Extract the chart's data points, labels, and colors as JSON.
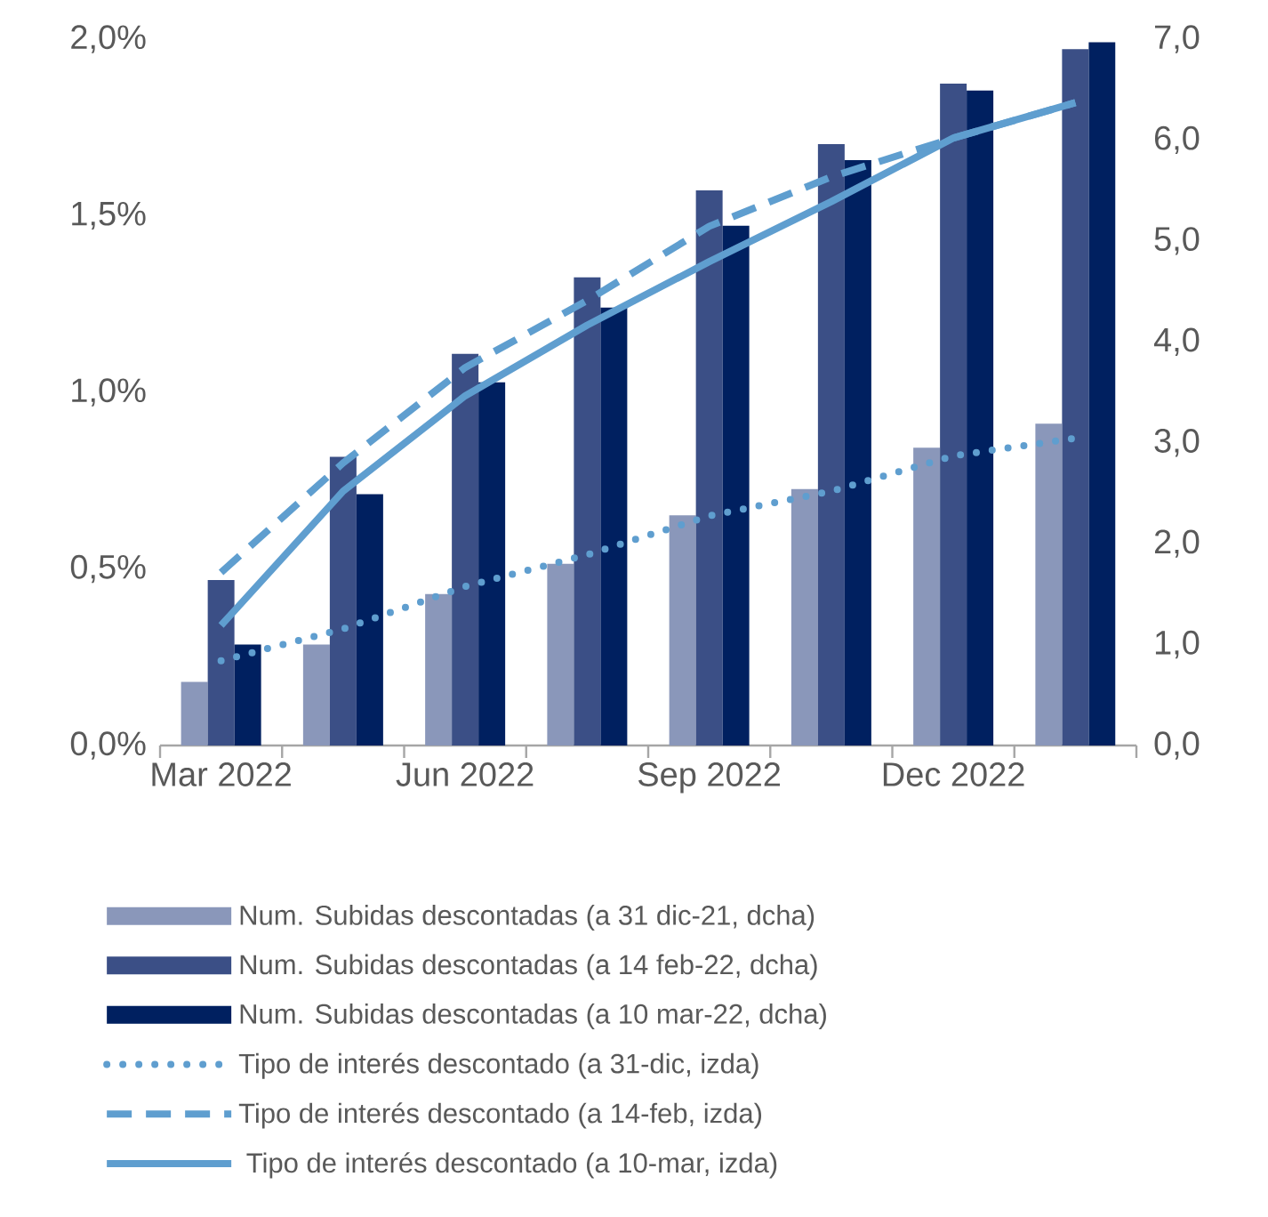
{
  "chart_data": {
    "type": "bar",
    "categories": [
      "Mar 2022",
      null,
      "Jun 2022",
      null,
      "Sep 2022",
      null,
      "Dec 2022",
      null
    ],
    "series": [
      {
        "name": "Num. Subidas descontadas (a 31 dic-21, dcha)",
        "axis": "y2",
        "color": "#8a97ba",
        "values": [
          0.63,
          1.0,
          1.5,
          1.8,
          2.28,
          2.54,
          2.95,
          3.19
        ]
      },
      {
        "name": "Num. Subidas descontadas (a 14 feb-22, dcha)",
        "axis": "y2",
        "color": "#3b4f86",
        "values": [
          1.64,
          2.86,
          3.88,
          4.64,
          5.5,
          5.96,
          6.56,
          6.9
        ]
      },
      {
        "name": "Num. Subidas descontadas (a 10 mar-22, dcha)",
        "axis": "y2",
        "color": "#002060",
        "values": [
          1.0,
          2.49,
          3.6,
          4.34,
          5.15,
          5.8,
          6.49,
          6.97
        ]
      },
      {
        "name": "Tipo de interés descontado (a 31-dic, izda)",
        "type": "line",
        "line_style": "dotted",
        "color": "#5f9ecf",
        "values": [
          0.24,
          0.33,
          0.45,
          0.54,
          0.65,
          0.72,
          0.82,
          0.87
        ]
      },
      {
        "name": "Tipo de interés descontado (a 14-feb, izda)",
        "type": "line",
        "line_style": "dashed",
        "color": "#5f9ecf",
        "values": [
          0.49,
          0.8,
          1.07,
          1.26,
          1.47,
          1.61,
          1.72,
          1.82
        ]
      },
      {
        "name": " Tipo de interés descontado (a 10-mar, izda)",
        "type": "line",
        "line_style": "solid",
        "color": "#5f9ecf",
        "values": [
          0.34,
          0.72,
          0.99,
          1.19,
          1.37,
          1.54,
          1.72,
          1.82
        ]
      }
    ],
    "ylim": [
      0,
      2
    ],
    "yticks": [
      {
        "value": 0,
        "label": "0,0%"
      },
      {
        "value": 0.5,
        "label": "0,5%"
      },
      {
        "value": 1,
        "label": "1,0%"
      },
      {
        "value": 1.5,
        "label": "1,5%"
      },
      {
        "value": 2,
        "label": "2,0%"
      }
    ],
    "y2lim": [
      0,
      7
    ],
    "y2ticks": [
      {
        "value": 0,
        "label": "0,0"
      },
      {
        "value": 1,
        "label": "1,0"
      },
      {
        "value": 2,
        "label": "2,0"
      },
      {
        "value": 3,
        "label": "3,0"
      },
      {
        "value": 4,
        "label": "4,0"
      },
      {
        "value": 5,
        "label": "5,0"
      },
      {
        "value": 6,
        "label": "6,0"
      },
      {
        "value": 7,
        "label": "7,0"
      }
    ],
    "legend": "bottom"
  }
}
